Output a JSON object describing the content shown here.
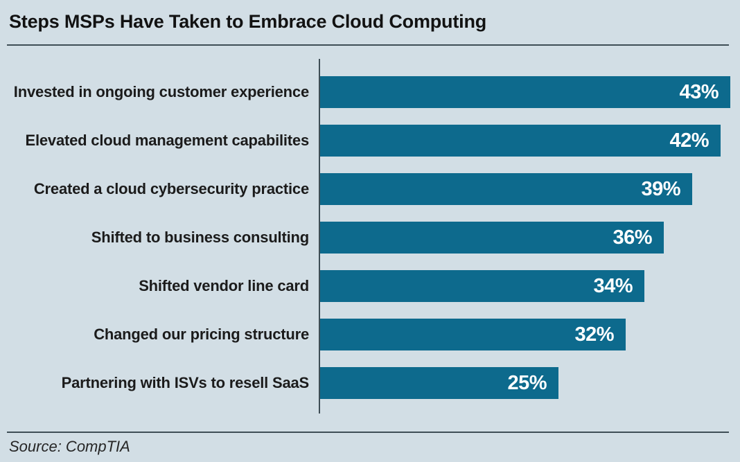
{
  "title": "Steps MSPs Have Taken to Embrace Cloud Computing",
  "source": "Source: CompTIA",
  "colors": {
    "background": "#d2dee5",
    "bar": "#0d6a8d",
    "rule": "#3e4d55",
    "title_text": "#121212",
    "label_text": "#1b1b1b",
    "value_text": "#ffffff",
    "source_text": "#262626"
  },
  "chart_data": {
    "type": "bar",
    "orientation": "horizontal",
    "title": "Steps MSPs Have Taken to Embrace Cloud Computing",
    "categories": [
      "Invested in ongoing customer experience",
      "Elevated cloud management capabilites",
      "Created a cloud cybersecurity practice",
      "Shifted to business consulting",
      "Shifted vendor line card",
      "Changed our pricing structure",
      "Partnering with ISVs to resell SaaS"
    ],
    "values": [
      43,
      42,
      39,
      36,
      34,
      32,
      25
    ],
    "value_suffix": "%",
    "value_labels": "inside-end",
    "xlabel": "",
    "ylabel": "",
    "xlim": [
      0,
      44
    ],
    "grid": false,
    "legend": "none",
    "source": "Source: CompTIA"
  }
}
